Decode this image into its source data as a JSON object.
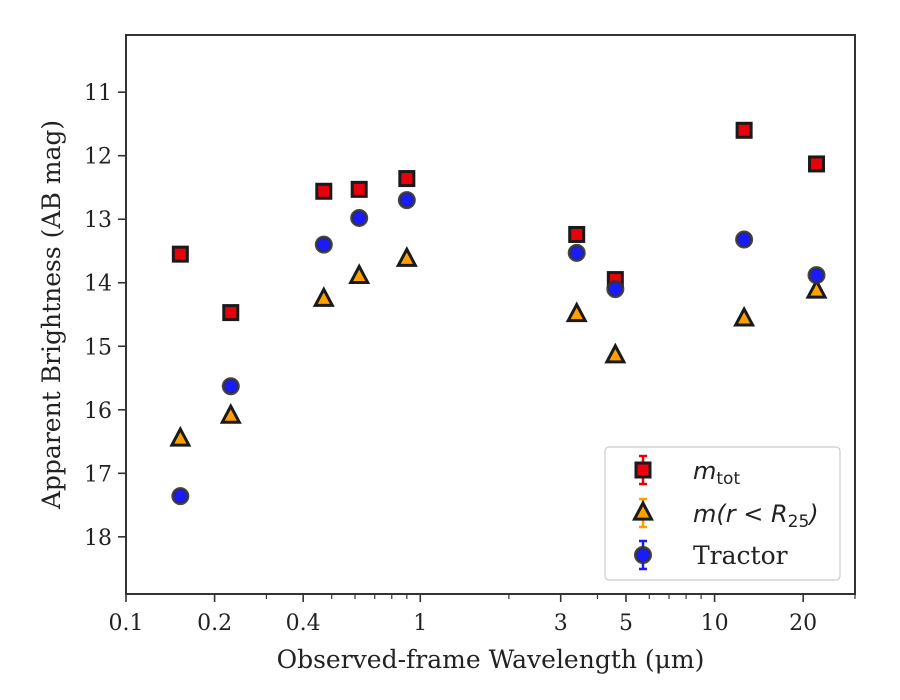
{
  "chart_data": {
    "type": "scatter",
    "xlabel": "Observed-frame Wavelength (μm)",
    "ylabel": "Apparent Brightness (AB mag)",
    "x_scale": "log",
    "xlim": [
      0.1,
      30
    ],
    "ylim": [
      18.9,
      10.1
    ],
    "y_inverted": true,
    "x_ticks": [
      {
        "value": 0.1,
        "label": "0.1"
      },
      {
        "value": 0.2,
        "label": "0.2"
      },
      {
        "value": 0.4,
        "label": "0.4"
      },
      {
        "value": 1,
        "label": "1"
      },
      {
        "value": 3,
        "label": "3"
      },
      {
        "value": 5,
        "label": "5"
      },
      {
        "value": 10,
        "label": "10"
      },
      {
        "value": 20,
        "label": "20"
      }
    ],
    "y_ticks": [
      {
        "value": 11,
        "label": "11"
      },
      {
        "value": 12,
        "label": "12"
      },
      {
        "value": 13,
        "label": "13"
      },
      {
        "value": 14,
        "label": "14"
      },
      {
        "value": 15,
        "label": "15"
      },
      {
        "value": 16,
        "label": "16"
      },
      {
        "value": 17,
        "label": "17"
      },
      {
        "value": 18,
        "label": "18"
      }
    ],
    "grid": false,
    "legend_position": "lower-right",
    "series": [
      {
        "key": "mtot",
        "marker": "square",
        "color": "#e8000b",
        "edge_color": "#1a1a1a",
        "points": [
          {
            "x": 0.153,
            "y": 13.55
          },
          {
            "x": 0.227,
            "y": 14.47
          },
          {
            "x": 0.47,
            "y": 12.56
          },
          {
            "x": 0.62,
            "y": 12.53
          },
          {
            "x": 0.9,
            "y": 12.36
          },
          {
            "x": 3.4,
            "y": 13.24
          },
          {
            "x": 4.6,
            "y": 13.95
          },
          {
            "x": 12.6,
            "y": 11.6
          },
          {
            "x": 22.2,
            "y": 12.13
          }
        ]
      },
      {
        "key": "mr25",
        "marker": "triangle",
        "color": "#ff9f00",
        "edge_color": "#1a1a1a",
        "points": [
          {
            "x": 0.153,
            "y": 16.46
          },
          {
            "x": 0.227,
            "y": 16.1
          },
          {
            "x": 0.47,
            "y": 14.26
          },
          {
            "x": 0.62,
            "y": 13.9
          },
          {
            "x": 0.9,
            "y": 13.63
          },
          {
            "x": 3.4,
            "y": 14.5
          },
          {
            "x": 4.6,
            "y": 15.15
          },
          {
            "x": 12.6,
            "y": 14.57
          },
          {
            "x": 22.2,
            "y": 14.13
          }
        ]
      },
      {
        "key": "tractor",
        "name": "Tractor",
        "marker": "circle",
        "color": "#1a1aff",
        "edge_color": "#333333",
        "points": [
          {
            "x": 0.153,
            "y": 17.36
          },
          {
            "x": 0.227,
            "y": 15.63
          },
          {
            "x": 0.47,
            "y": 13.4
          },
          {
            "x": 0.62,
            "y": 12.98
          },
          {
            "x": 0.9,
            "y": 12.7
          },
          {
            "x": 3.4,
            "y": 13.53
          },
          {
            "x": 4.6,
            "y": 14.1
          },
          {
            "x": 12.6,
            "y": 13.32
          },
          {
            "x": 22.2,
            "y": 13.88
          }
        ]
      }
    ],
    "legend": [
      {
        "key": "mtot",
        "math_main": "m",
        "math_sub": "tot",
        "bar_color": "#e8000b"
      },
      {
        "key": "mr25",
        "math_main": "m(r < R",
        "math_sub": "25",
        "math_tail": ")",
        "bar_color": "#ff9f00"
      },
      {
        "key": "tractor",
        "text": "Tractor",
        "bar_color": "#1a1aff"
      }
    ]
  }
}
